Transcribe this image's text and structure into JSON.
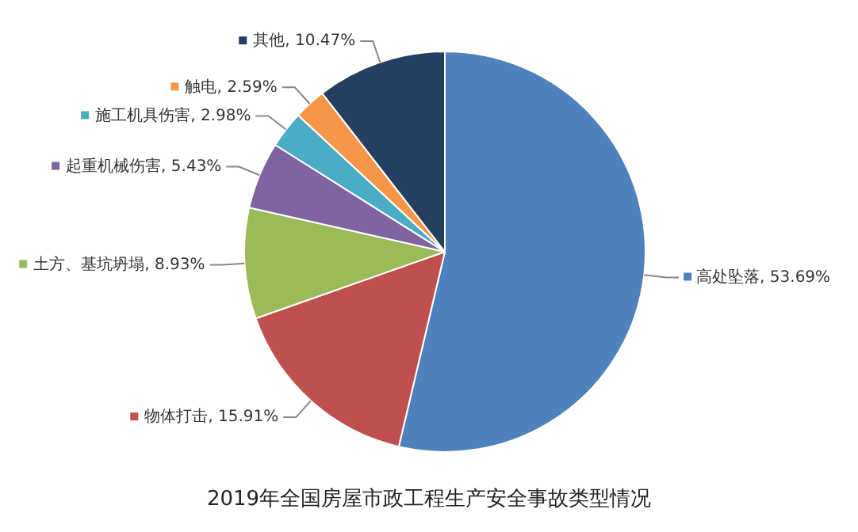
{
  "chart_data": {
    "type": "pie",
    "title": "2019年全国房屋市政工程生产安全事故类型情况",
    "categories": [
      "高处坠落",
      "物体打击",
      "土方、基坑坍塌",
      "起重机械伤害",
      "施工机具伤害",
      "触电",
      "其他"
    ],
    "values": [
      53.69,
      15.91,
      8.93,
      5.43,
      2.98,
      2.59,
      10.47
    ],
    "colors": [
      "#4f81bd",
      "#c0504d",
      "#9bbb59",
      "#8064a2",
      "#4bacc6",
      "#f79646",
      "#243f60"
    ],
    "value_labels": [
      "53.69%",
      "15.91%",
      "8.93%",
      "5.43%",
      "2.98%",
      "2.59%",
      "10.47%"
    ],
    "legend": "left"
  }
}
